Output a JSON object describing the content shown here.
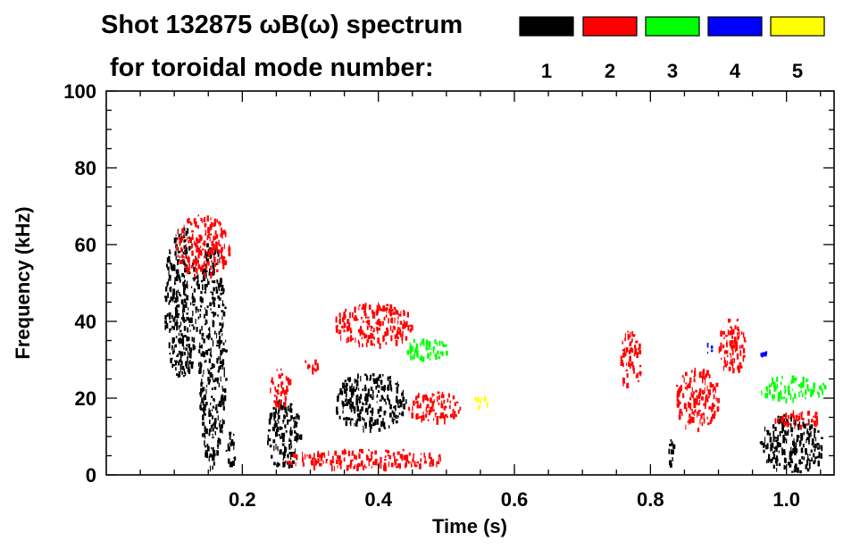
{
  "header": {
    "title": "Shot 132875 ωB(ω) spectrum",
    "subtitle": "for toroidal mode number:"
  },
  "chart_data": {
    "type": "heatmap",
    "title": "Shot 132875 ωB(ω) spectrum",
    "xlabel": "Time (s)",
    "ylabel": "Frequency (kHz)",
    "xlim": [
      0.0,
      1.07
    ],
    "ylim": [
      0,
      100
    ],
    "x_ticks": [
      {
        "value": 0.2,
        "label": "0.2"
      },
      {
        "value": 0.4,
        "label": "0.4"
      },
      {
        "value": 0.6,
        "label": "0.6"
      },
      {
        "value": 0.8,
        "label": "0.8"
      },
      {
        "value": 1.0,
        "label": "1.0"
      }
    ],
    "y_ticks": [
      {
        "value": 0,
        "label": "0"
      },
      {
        "value": 20,
        "label": "20"
      },
      {
        "value": 40,
        "label": "40"
      },
      {
        "value": 60,
        "label": "60"
      },
      {
        "value": 80,
        "label": "80"
      },
      {
        "value": 100,
        "label": "100"
      }
    ],
    "legend": {
      "placement": "top-right",
      "entries": [
        {
          "label": "1",
          "color": "#000000"
        },
        {
          "label": "2",
          "color": "#ff0000"
        },
        {
          "label": "3",
          "color": "#00ff00"
        },
        {
          "label": "4",
          "color": "#0000ff"
        },
        {
          "label": "5",
          "color": "#ffff00"
        }
      ]
    },
    "series": [
      {
        "mode": "1",
        "color": "#000000",
        "regions": [
          {
            "t": [
              0.085,
              0.135
            ],
            "f": [
              26,
              65
            ]
          },
          {
            "t": [
              0.135,
              0.175
            ],
            "f": [
              2,
              62
            ]
          },
          {
            "t": [
              0.175,
              0.19
            ],
            "f": [
              3,
              12
            ]
          },
          {
            "t": [
              0.235,
              0.285
            ],
            "f": [
              2,
              20
            ]
          },
          {
            "t": [
              0.335,
              0.44
            ],
            "f": [
              12,
              27
            ]
          },
          {
            "t": [
              0.825,
              0.835
            ],
            "f": [
              2,
              10
            ]
          },
          {
            "t": [
              0.96,
              1.055
            ],
            "f": [
              1,
              16
            ]
          }
        ]
      },
      {
        "mode": "2",
        "color": "#ff0000",
        "regions": [
          {
            "t": [
              0.1,
              0.18
            ],
            "f": [
              52,
              68
            ]
          },
          {
            "t": [
              0.24,
              0.27
            ],
            "f": [
              18,
              28
            ]
          },
          {
            "t": [
              0.29,
              0.31
            ],
            "f": [
              27,
              31
            ]
          },
          {
            "t": [
              0.335,
              0.45
            ],
            "f": [
              34,
              45
            ]
          },
          {
            "t": [
              0.44,
              0.52
            ],
            "f": [
              14,
              22
            ]
          },
          {
            "t": [
              0.26,
              0.5
            ],
            "f": [
              2,
              7
            ]
          },
          {
            "t": [
              0.755,
              0.785
            ],
            "f": [
              22,
              38
            ]
          },
          {
            "t": [
              0.835,
              0.9
            ],
            "f": [
              12,
              28
            ]
          },
          {
            "t": [
              0.9,
              0.94
            ],
            "f": [
              27,
              41
            ]
          },
          {
            "t": [
              0.98,
              1.055
            ],
            "f": [
              13,
              17
            ]
          }
        ]
      },
      {
        "mode": "3",
        "color": "#00ff00",
        "regions": [
          {
            "t": [
              0.44,
              0.5
            ],
            "f": [
              30,
              36
            ]
          },
          {
            "t": [
              0.96,
              1.055
            ],
            "f": [
              20,
              26
            ]
          }
        ]
      },
      {
        "mode": "4",
        "color": "#0000ff",
        "regions": [
          {
            "t": [
              0.88,
              0.89
            ],
            "f": [
              32,
              35
            ]
          },
          {
            "t": [
              0.96,
              0.97
            ],
            "f": [
              31,
              34
            ]
          }
        ]
      },
      {
        "mode": "5",
        "color": "#ffff00",
        "regions": [
          {
            "t": [
              0.54,
              0.56
            ],
            "f": [
              18,
              21
            ]
          }
        ]
      }
    ]
  }
}
